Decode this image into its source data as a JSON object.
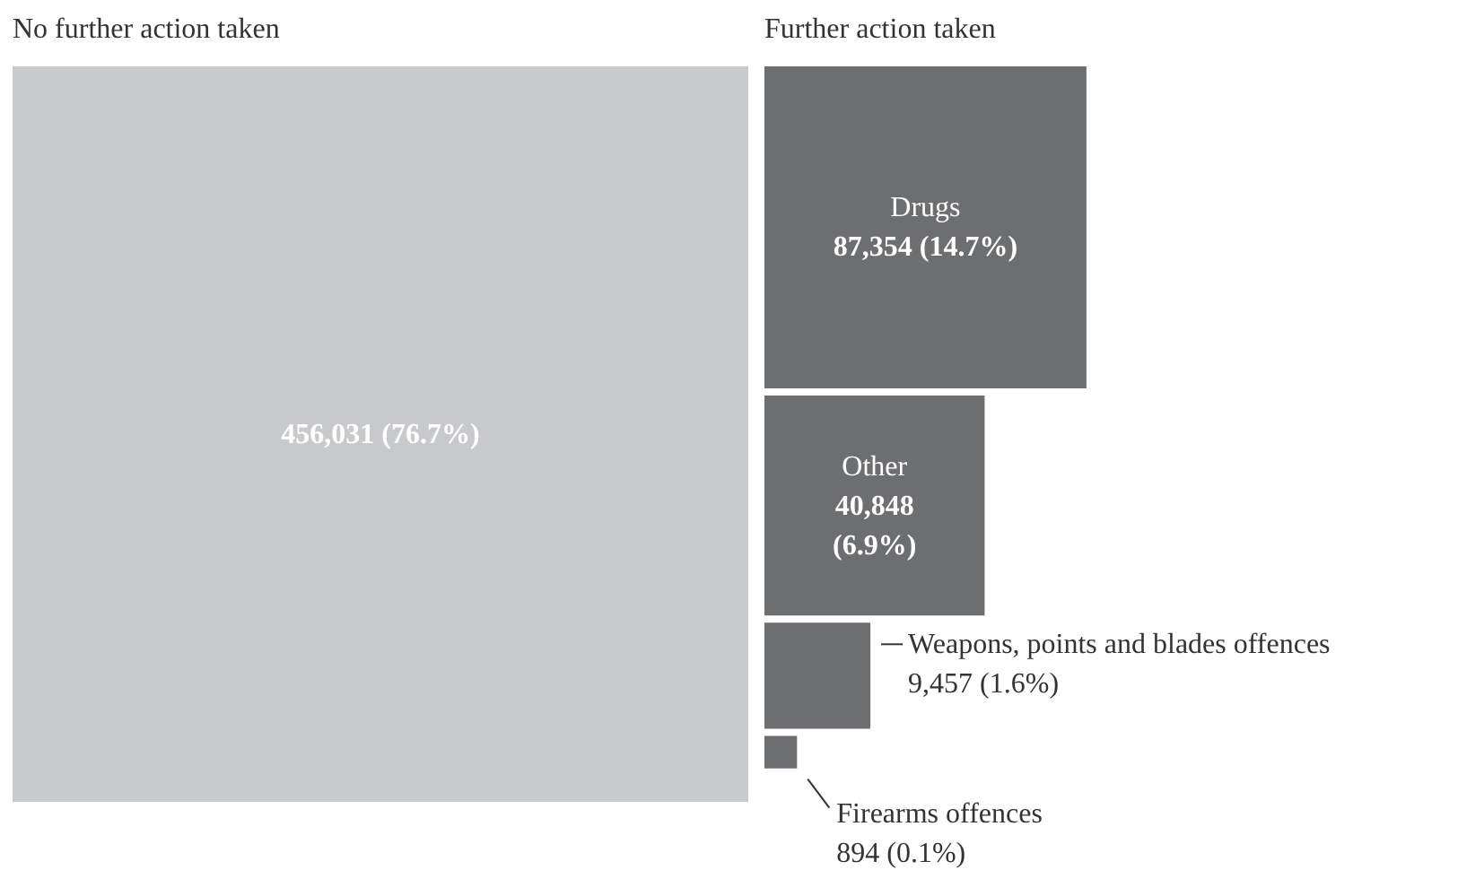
{
  "chart_data": {
    "type": "other",
    "categories": [
      "No further action taken",
      "Drugs",
      "Other",
      "Weapons, points and blades offences",
      "Firearms offences"
    ],
    "values": [
      456031,
      87354,
      40848,
      9457,
      894
    ],
    "value_labels": [
      "456,031 (76.7%)",
      "87,354 (14.7%)",
      "40,848 (6.9%)",
      "9,457 (1.6%)",
      "894 (0.1%)"
    ],
    "colors": [
      "#c8c9cb",
      "#6d6e70",
      "#6d6e70",
      "#6d6e70",
      "#6d6e70"
    ],
    "annotations": [
      "Further action taken"
    ]
  }
}
